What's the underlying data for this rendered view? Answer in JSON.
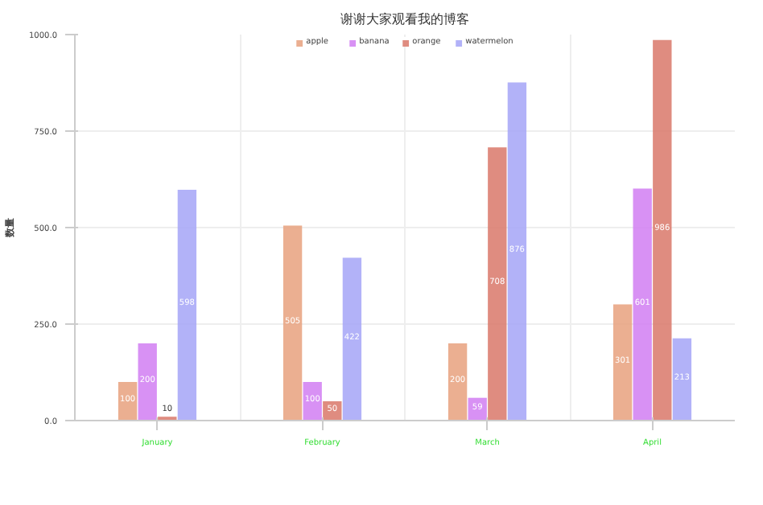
{
  "chart_data": {
    "type": "bar",
    "title": "谢谢大家观看我的博客",
    "ylabel": "数量",
    "categories": [
      "January",
      "February",
      "March",
      "April"
    ],
    "series": [
      {
        "name": "apple",
        "color": "#e8a17e",
        "values": [
          100,
          505,
          200,
          301
        ]
      },
      {
        "name": "banana",
        "color": "#d17ef2",
        "values": [
          200,
          100,
          59,
          601
        ]
      },
      {
        "name": "orange",
        "color": "#d9786a",
        "values": [
          10,
          50,
          708,
          986
        ]
      },
      {
        "name": "watermelon",
        "color": "#a5a5f7",
        "values": [
          598,
          422,
          876,
          213
        ]
      }
    ],
    "ylim": [
      0,
      1000
    ],
    "yticks": [
      {
        "value": 0,
        "label": "0.0"
      },
      {
        "value": 250,
        "label": "250.0"
      },
      {
        "value": 500,
        "label": "500.0"
      },
      {
        "value": 750,
        "label": "750.0"
      },
      {
        "value": 1000,
        "label": "1000.0"
      }
    ],
    "grid": true,
    "legend": "top",
    "data_labels": true
  }
}
